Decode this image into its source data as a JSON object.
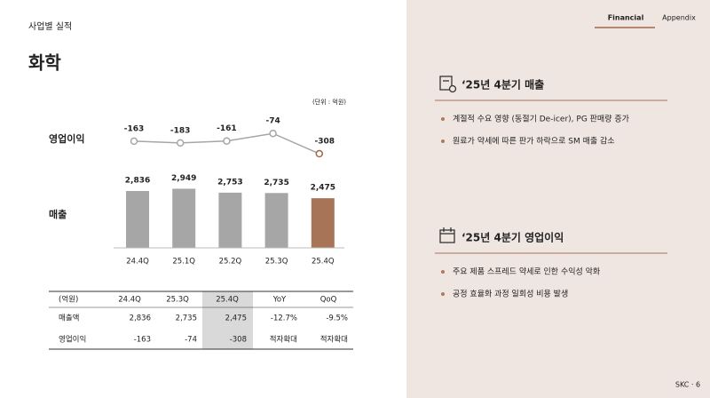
{
  "header": {
    "section": "사업별 실적",
    "title": "화학",
    "tabs": [
      "Financial",
      "Appendix"
    ],
    "footer": "SKC · 6"
  },
  "chart_data": {
    "type": "bar",
    "unit_label": "(단위 : 억원)",
    "categories": [
      "24.4Q",
      "25.1Q",
      "25.2Q",
      "25.3Q",
      "25.4Q"
    ],
    "series": [
      {
        "name": "영업이익",
        "type": "line",
        "color": "#a6a6a6",
        "point_colors": [
          "#a6a6a6",
          "#a6a6a6",
          "#a6a6a6",
          "#a6a6a6",
          "#a0684a"
        ],
        "values": [
          -163,
          -183,
          -161,
          -74,
          -308
        ],
        "ylim": [
          -400,
          0
        ]
      },
      {
        "name": "매출",
        "type": "bar",
        "colors": [
          "#a6a6a6",
          "#a6a6a6",
          "#a6a6a6",
          "#a6a6a6",
          "#a87457"
        ],
        "values": [
          2836,
          2949,
          2753,
          2735,
          2475
        ],
        "value_labels": [
          "2,836",
          "2,949",
          "2,753",
          "2,735",
          "2,475"
        ],
        "ylim": [
          0,
          3500
        ]
      }
    ]
  },
  "table": {
    "header": [
      "(억원)",
      "24.4Q",
      "25.3Q",
      "25.4Q",
      "YoY",
      "QoQ"
    ],
    "rows": [
      [
        "매출액",
        "2,836",
        "2,735",
        "2,475",
        "-12.7%",
        "-9.5%"
      ],
      [
        "영업이익",
        "-163",
        "-74",
        "-308",
        "적자확대",
        "적자확대"
      ]
    ]
  },
  "sections": [
    {
      "title": "‘25년 4분기 매출",
      "bullets": [
        "계절적 수요 영향 (동절기 De-icer), PG 판매량 증가",
        "원료가 약세에 따른 판가 하락으로 SM 매출 감소"
      ]
    },
    {
      "title": "‘25년 4분기 영업이익",
      "bullets": [
        "주요 제품 스프레드 약세로 인한 수익성 악화",
        "공정 효율화 과정 일회성 비용 발생"
      ]
    }
  ]
}
